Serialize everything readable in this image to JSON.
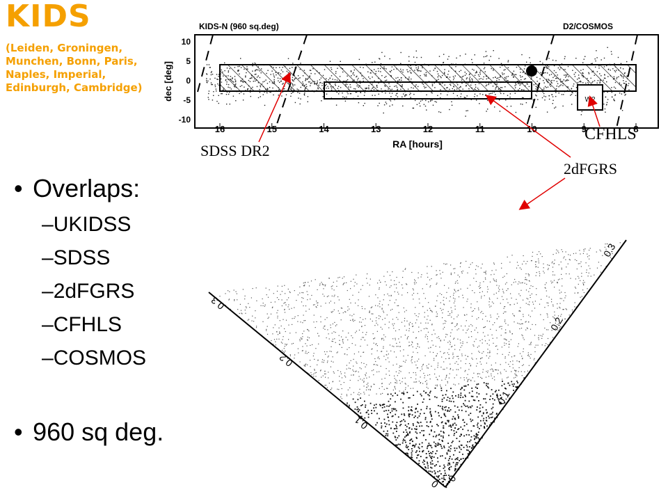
{
  "slide": {
    "title": "KIDS",
    "institutions": "(Leiden, Groningen, Munchen, Bonn, Paris, Naples, Imperial, Edinburgh, Cambridge)",
    "bullet_overlaps": "Overlaps:",
    "overlaps": [
      "UKIDSS",
      "SDSS",
      "2dFGRS",
      "CFHLS",
      "COSMOS"
    ],
    "bullet_area": "960 sq deg.",
    "bullet_char": "•",
    "dash_char": "–"
  },
  "sky_plot": {
    "title_left": "KIDS-N (960 sq.deg)",
    "title_right": "D2/COSMOS",
    "xlabel": "RA [hours]",
    "ylabel": "dec [deg]",
    "xticks": [
      "16",
      "15",
      "14",
      "13",
      "12",
      "11",
      "10",
      "9",
      "8"
    ],
    "yticks": [
      "10",
      "5",
      "0",
      "-5",
      "-10"
    ],
    "w2_label": "W2"
  },
  "annotations": {
    "sdss": "SDSS DR2",
    "cfhls": "CFHLS",
    "twodf": "2dFGRS"
  },
  "cone": {
    "left_ticks": [
      "0.3",
      "0.2",
      "0.1",
      "0"
    ],
    "right_ticks": [
      "0.3",
      "0.2",
      "0.1",
      "0"
    ]
  }
}
